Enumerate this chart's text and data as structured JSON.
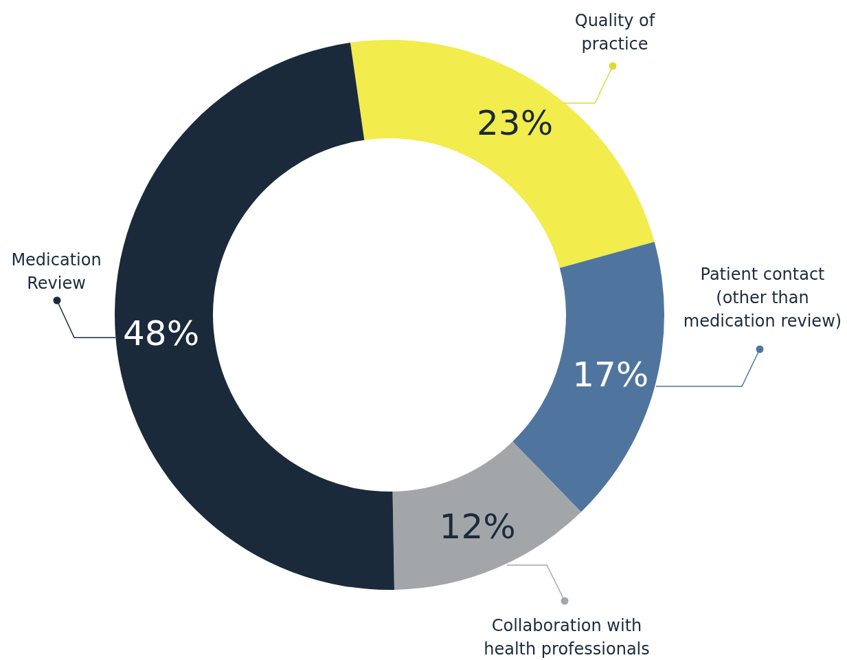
{
  "chart_data": {
    "type": "donut",
    "categories": [
      "Quality of practice",
      "Patient contact (other than medication review)",
      "Collaboration with health professionals",
      "Medication Review"
    ],
    "values": [
      23,
      17,
      12,
      48
    ],
    "colors": [
      "#f2ec4c",
      "#4f759f",
      "#a3a6a9",
      "#1b2a3b"
    ],
    "value_labels": [
      "23%",
      "17%",
      "12%",
      "48%"
    ]
  }
}
